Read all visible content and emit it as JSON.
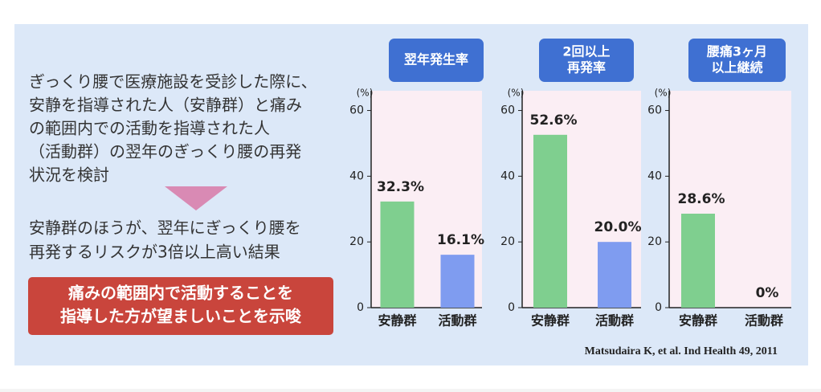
{
  "text": {
    "study": [
      "ぎっくり腰で医療施設を受診した際に、",
      "安静を指導された人（安静群）と痛み",
      "の範囲内での活動を指導された人",
      "（活動群）の翌年のぎっくり腰の再発",
      "状況を検討"
    ],
    "result": [
      "安静群のほうが、翌年にぎっくり腰を",
      "再発するリスクが3倍以上高い結果"
    ],
    "conclusion": [
      "痛みの範囲内で活動することを",
      "指導した方が望ましいことを示唆"
    ]
  },
  "citation": "Matsudaira K, et al. Ind Health 49,  2011",
  "chart_data": [
    {
      "type": "bar",
      "title": [
        "翌年発生率"
      ],
      "y_label": "(%)",
      "categories": [
        "安静群",
        "活動群"
      ],
      "values": [
        32.3,
        16.1
      ],
      "value_labels": [
        "32.3%",
        "16.1%"
      ],
      "colors": [
        "#7fcf8f",
        "#7f9cf0"
      ],
      "ylim": [
        0,
        66
      ],
      "yticks": [
        0,
        20,
        40,
        60
      ]
    },
    {
      "type": "bar",
      "title": [
        "2回以上",
        "再発率"
      ],
      "y_label": "(%)",
      "categories": [
        "安静群",
        "活動群"
      ],
      "values": [
        52.6,
        20.0
      ],
      "value_labels": [
        "52.6%",
        "20.0%"
      ],
      "colors": [
        "#7fcf8f",
        "#7f9cf0"
      ],
      "ylim": [
        0,
        66
      ],
      "yticks": [
        0,
        20,
        40,
        60
      ]
    },
    {
      "type": "bar",
      "title": [
        "腰痛3ヶ月",
        "以上継続"
      ],
      "y_label": "(%)",
      "categories": [
        "安静群",
        "活動群"
      ],
      "values": [
        28.6,
        0
      ],
      "value_labels": [
        "28.6%",
        "0%"
      ],
      "colors": [
        "#7fcf8f",
        "#7f9cf0"
      ],
      "ylim": [
        0,
        66
      ],
      "yticks": [
        0,
        20,
        40,
        60
      ]
    }
  ]
}
